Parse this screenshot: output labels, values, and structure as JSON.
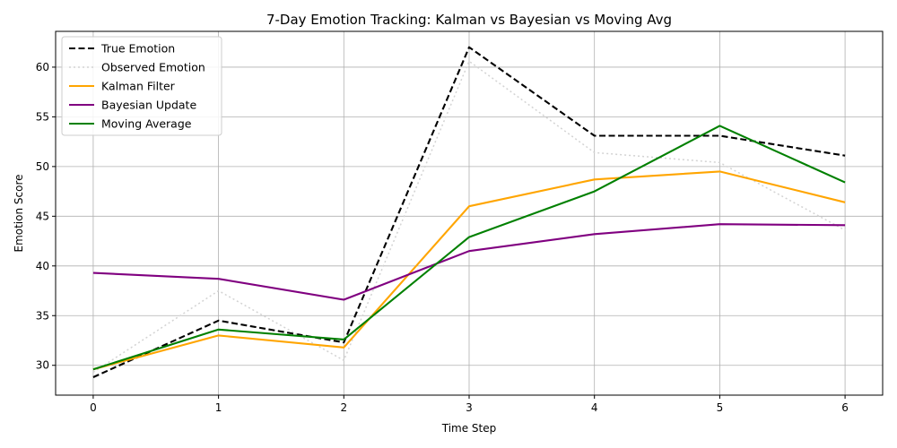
{
  "chart_data": {
    "type": "line",
    "title": "7-Day Emotion Tracking: Kalman vs Bayesian vs Moving Avg",
    "xlabel": "Time Step",
    "ylabel": "Emotion Score",
    "x": [
      0,
      1,
      2,
      3,
      4,
      5,
      6
    ],
    "xlim": [
      -0.3,
      6.3
    ],
    "ylim": [
      27.0,
      63.6
    ],
    "xticks": [
      "0",
      "1",
      "2",
      "3",
      "4",
      "5",
      "6"
    ],
    "yticks": [
      30,
      35,
      40,
      45,
      50,
      55,
      60
    ],
    "grid": true,
    "legend_position": "top-left",
    "series": [
      {
        "name": "True Emotion",
        "values": [
          28.8,
          34.5,
          32.3,
          62.0,
          53.1,
          53.1,
          51.1
        ],
        "color": "#000000",
        "style": "dashed"
      },
      {
        "name": "Observed Emotion",
        "values": [
          29.3,
          37.5,
          30.5,
          60.6,
          51.4,
          50.4,
          43.6
        ],
        "color": "#d3d3d3",
        "style": "dotted"
      },
      {
        "name": "Kalman Filter",
        "values": [
          29.6,
          33.0,
          31.8,
          46.0,
          48.7,
          49.5,
          46.4
        ],
        "color": "#ffa500",
        "style": "solid"
      },
      {
        "name": "Bayesian Update",
        "values": [
          39.3,
          38.7,
          36.6,
          41.5,
          43.2,
          44.2,
          44.1
        ],
        "color": "#800080",
        "style": "solid"
      },
      {
        "name": "Moving Average",
        "values": [
          29.6,
          33.6,
          32.6,
          42.9,
          47.5,
          54.1,
          48.4
        ],
        "color": "#008000",
        "style": "solid"
      }
    ]
  }
}
